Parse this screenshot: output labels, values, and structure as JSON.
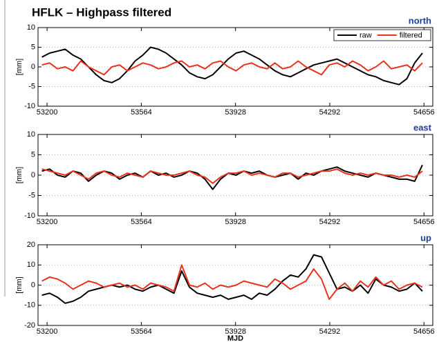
{
  "title": "HFLK – Highpass filtered",
  "chart_data": [
    {
      "type": "line",
      "title": "north",
      "ylabel": "[mm]",
      "legend": "upper right",
      "grid": true,
      "xlim": [
        53165,
        54690
      ],
      "xticks": [
        53200,
        53564,
        53928,
        54292,
        54656
      ],
      "ylim": [
        -10,
        10
      ],
      "yticks": [
        -10,
        -5,
        0,
        5,
        10
      ],
      "x": [
        53180,
        53210,
        53240,
        53270,
        53300,
        53330,
        53360,
        53390,
        53420,
        53450,
        53480,
        53510,
        53540,
        53570,
        53600,
        53630,
        53660,
        53690,
        53720,
        53750,
        53780,
        53810,
        53840,
        53870,
        53900,
        53930,
        53960,
        53990,
        54020,
        54050,
        54080,
        54110,
        54140,
        54170,
        54200,
        54230,
        54260,
        54290,
        54320,
        54350,
        54380,
        54410,
        54440,
        54470,
        54500,
        54530,
        54560,
        54590,
        54620,
        54650
      ],
      "series": [
        {
          "name": "raw",
          "color": "#000000",
          "values": [
            2.5,
            3.5,
            4,
            4.5,
            3,
            2,
            0,
            -2,
            -3.5,
            -4,
            -3,
            -1,
            1.5,
            3,
            5,
            4.5,
            3.5,
            2,
            0.5,
            -1.5,
            -2.5,
            -3,
            -2,
            0,
            2,
            3.5,
            4,
            3,
            2,
            0.5,
            -1,
            -2,
            -2.5,
            -1.5,
            -0.5,
            0.5,
            1,
            1.5,
            2,
            1,
            0,
            -1,
            -2,
            -2.5,
            -3.5,
            -4,
            -4.5,
            -3,
            1,
            3.5
          ]
        },
        {
          "name": "filtered",
          "color": "#e8321e",
          "values": [
            0.5,
            1,
            -0.5,
            0,
            -1,
            1.5,
            0,
            -1,
            -2,
            0,
            0.5,
            -1,
            0,
            1,
            0.5,
            -0.5,
            0,
            1,
            1.5,
            0,
            0.5,
            -0.5,
            1,
            1.5,
            0,
            -1,
            0.5,
            1,
            0,
            -0.5,
            1,
            -0.5,
            0,
            1.5,
            0,
            -1,
            -2,
            0.5,
            1,
            0,
            1.5,
            0.5,
            -1,
            0,
            1.5,
            -0.5,
            0,
            0.5,
            -1,
            1
          ]
        }
      ]
    },
    {
      "type": "line",
      "title": "east",
      "ylabel": "[mm]",
      "grid": true,
      "xlim": [
        53165,
        54690
      ],
      "xticks": [
        53200,
        53564,
        53928,
        54292,
        54656
      ],
      "ylim": [
        -10,
        10
      ],
      "yticks": [
        -10,
        -5,
        0,
        5,
        10
      ],
      "x": [
        53180,
        53210,
        53240,
        53270,
        53300,
        53330,
        53360,
        53390,
        53420,
        53450,
        53480,
        53510,
        53540,
        53570,
        53600,
        53630,
        53660,
        53690,
        53720,
        53750,
        53780,
        53810,
        53840,
        53870,
        53900,
        53930,
        53960,
        53990,
        54020,
        54050,
        54080,
        54110,
        54140,
        54170,
        54200,
        54230,
        54260,
        54290,
        54320,
        54350,
        54380,
        54410,
        54440,
        54470,
        54500,
        54530,
        54560,
        54590,
        54620,
        54650
      ],
      "series": [
        {
          "name": "raw",
          "color": "#000000",
          "values": [
            1,
            1.5,
            0,
            -0.5,
            1,
            0.5,
            -1.5,
            0,
            1,
            0.5,
            -1,
            0,
            0.5,
            -0.5,
            1,
            0,
            0.5,
            -0.5,
            0,
            1,
            0.5,
            -1,
            -3.5,
            -1,
            0.5,
            0,
            1,
            0.5,
            1,
            0,
            -0.5,
            0,
            0.5,
            -1,
            0.5,
            0,
            1,
            1.5,
            2,
            1,
            0.5,
            0,
            -0.5,
            0.5,
            0,
            -0.5,
            -1,
            -1,
            -1.5,
            2.5
          ]
        },
        {
          "name": "filtered",
          "color": "#e8321e",
          "values": [
            1.5,
            1,
            0.5,
            0,
            1,
            0,
            -1,
            0.5,
            1,
            0,
            -0.5,
            0.5,
            0,
            -0.5,
            1,
            0.5,
            0,
            0,
            0.5,
            1,
            0,
            -0.5,
            -2,
            -0.5,
            0.5,
            0.5,
            1,
            0,
            0.5,
            0,
            -0.5,
            0.5,
            0.5,
            -0.5,
            0,
            0.5,
            1,
            1,
            1.5,
            0.5,
            0,
            0.5,
            0,
            0.5,
            0,
            0,
            -0.5,
            0,
            -0.5,
            1
          ]
        }
      ]
    },
    {
      "type": "line",
      "title": "up",
      "ylabel": "[mm]",
      "xlabel": "MJD",
      "grid": true,
      "xlim": [
        53165,
        54690
      ],
      "xticks": [
        53200,
        53564,
        53928,
        54292,
        54656
      ],
      "ylim": [
        -20,
        20
      ],
      "yticks": [
        -20,
        -10,
        0,
        10,
        20
      ],
      "x": [
        53180,
        53210,
        53240,
        53270,
        53300,
        53330,
        53360,
        53390,
        53420,
        53450,
        53480,
        53510,
        53540,
        53570,
        53600,
        53630,
        53660,
        53690,
        53720,
        53750,
        53780,
        53810,
        53840,
        53870,
        53900,
        53930,
        53960,
        53990,
        54020,
        54050,
        54080,
        54110,
        54140,
        54170,
        54200,
        54230,
        54260,
        54290,
        54320,
        54350,
        54380,
        54410,
        54440,
        54470,
        54500,
        54530,
        54560,
        54590,
        54620,
        54650
      ],
      "series": [
        {
          "name": "raw",
          "color": "#000000",
          "values": [
            -5,
            -4,
            -6,
            -9,
            -8,
            -6,
            -3,
            -2,
            -1,
            0,
            -1,
            0,
            -2,
            -3,
            -1,
            0,
            -2,
            -4,
            7,
            -1,
            -4,
            -5,
            -6,
            -5,
            -7,
            -6,
            -5,
            -7,
            -4,
            -5,
            -2,
            2,
            5,
            4,
            8,
            15,
            14,
            6,
            -2,
            -1,
            -3,
            0,
            -4,
            3,
            0,
            -1,
            -3,
            -2,
            1,
            -3
          ]
        },
        {
          "name": "filtered",
          "color": "#e8321e",
          "values": [
            2,
            4,
            3,
            1,
            -2,
            0,
            2,
            1,
            -1,
            0,
            1,
            -1,
            0,
            -2,
            1,
            0,
            -1,
            -3,
            10,
            0,
            -1,
            1,
            -2,
            0,
            -1,
            0,
            2,
            1,
            0,
            -1,
            3,
            1,
            -2,
            0,
            2,
            8,
            3,
            -7,
            -2,
            1,
            -3,
            2,
            -1,
            4,
            0,
            2,
            -2,
            0,
            1,
            -1
          ]
        }
      ]
    }
  ]
}
